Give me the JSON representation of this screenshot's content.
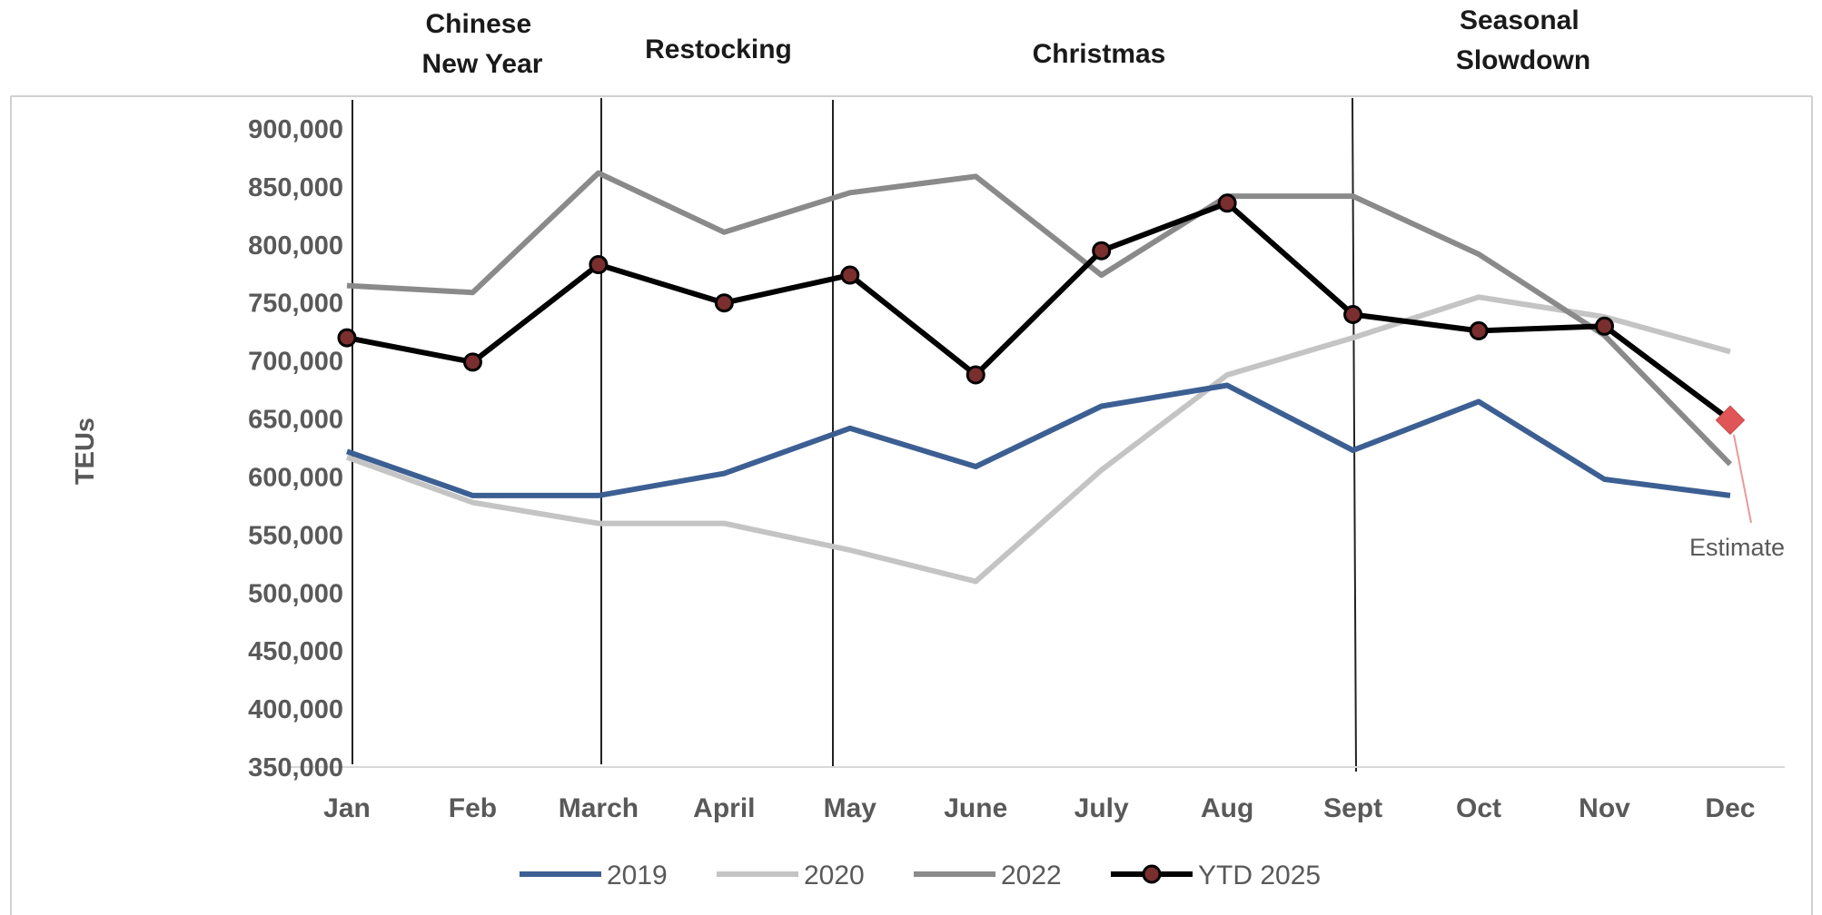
{
  "chart_data": {
    "type": "line",
    "title": "",
    "xlabel": "",
    "ylabel": "TEUs",
    "ylim": [
      350000,
      900000
    ],
    "y_ticks": [
      "900,000",
      "850,000",
      "800,000",
      "750,000",
      "700,000",
      "650,000",
      "600,000",
      "550,000",
      "500,000",
      "450,000",
      "400,000",
      "350,000"
    ],
    "y_tick_values": [
      900000,
      850000,
      800000,
      750000,
      700000,
      650000,
      600000,
      550000,
      500000,
      450000,
      400000,
      350000
    ],
    "categories": [
      "Jan",
      "Feb",
      "March",
      "April",
      "May",
      "June",
      "July",
      "Aug",
      "Sept",
      "Oct",
      "Nov",
      "Dec"
    ],
    "series": [
      {
        "name": "2019",
        "color": "#3c5f93",
        "markers": false,
        "values": [
          622000,
          584000,
          584000,
          603000,
          642000,
          609000,
          661000,
          679000,
          623000,
          665000,
          598000,
          584000
        ]
      },
      {
        "name": "2020",
        "color": "#c4c4c4",
        "markers": false,
        "values": [
          617000,
          578000,
          560000,
          560000,
          537000,
          510000,
          606000,
          688000,
          720000,
          755000,
          738000,
          708000
        ]
      },
      {
        "name": "2022",
        "color": "#8a8a8a",
        "markers": false,
        "values": [
          765000,
          759000,
          862000,
          811000,
          845000,
          859000,
          774000,
          842000,
          842000,
          792000,
          722000,
          611000
        ]
      },
      {
        "name": "YTD 2025",
        "color": "#000000",
        "marker_color": "#7a2e2e",
        "markers": true,
        "values": [
          720000,
          699000,
          783000,
          750000,
          774000,
          688000,
          795000,
          836000,
          740000,
          726000,
          730000,
          649000
        ]
      }
    ],
    "estimate": {
      "category": "Dec",
      "value": 649000,
      "label": "Estimate",
      "color": "#e05555"
    },
    "period_bands": [
      {
        "lines": [
          "Chinese",
          "New Year"
        ]
      },
      {
        "lines": [
          "Restocking"
        ]
      },
      {
        "lines": [
          "Christmas"
        ]
      },
      {
        "lines": [
          "Seasonal",
          "Slowdown"
        ]
      }
    ],
    "grid": false,
    "legend_position": "bottom"
  }
}
